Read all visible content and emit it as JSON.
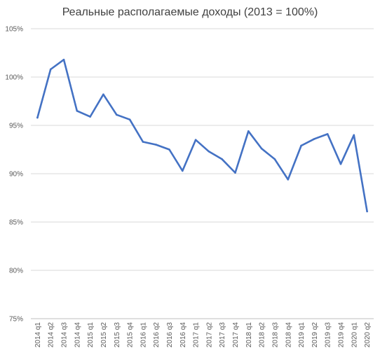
{
  "chart_data": {
    "type": "line",
    "title": "Реальные располагаемые доходы (2013 = 100%)",
    "categories": [
      "2014 q1",
      "2014 q2",
      "2014 q3",
      "2014 q4",
      "2015 q1",
      "2015 q2",
      "2015 q3",
      "2015 q4",
      "2016 q1",
      "2016 q2",
      "2016 q3",
      "2016 q4",
      "2017 q1",
      "2017 q2",
      "2017 q3",
      "2017 q4",
      "2018 q1",
      "2018 q2",
      "2018 q3",
      "2018 q4",
      "2019 q1",
      "2019 q2",
      "2019 q3",
      "2019 q4",
      "2020 q1",
      "2020 q2"
    ],
    "series": [
      {
        "values": [
          95.8,
          100.8,
          101.8,
          96.5,
          95.9,
          98.2,
          96.1,
          95.6,
          93.3,
          93.0,
          92.5,
          90.3,
          93.5,
          92.3,
          91.5,
          90.1,
          94.4,
          92.6,
          91.5,
          89.4,
          92.9,
          93.6,
          94.1,
          91.0,
          94.0,
          86.1
        ]
      }
    ],
    "y_ticks": [
      "105%",
      "100%",
      "95%",
      "90%",
      "85%",
      "80%",
      "75%"
    ],
    "ylim": [
      75,
      105
    ],
    "grid": true,
    "line_color": "#4472c4"
  }
}
